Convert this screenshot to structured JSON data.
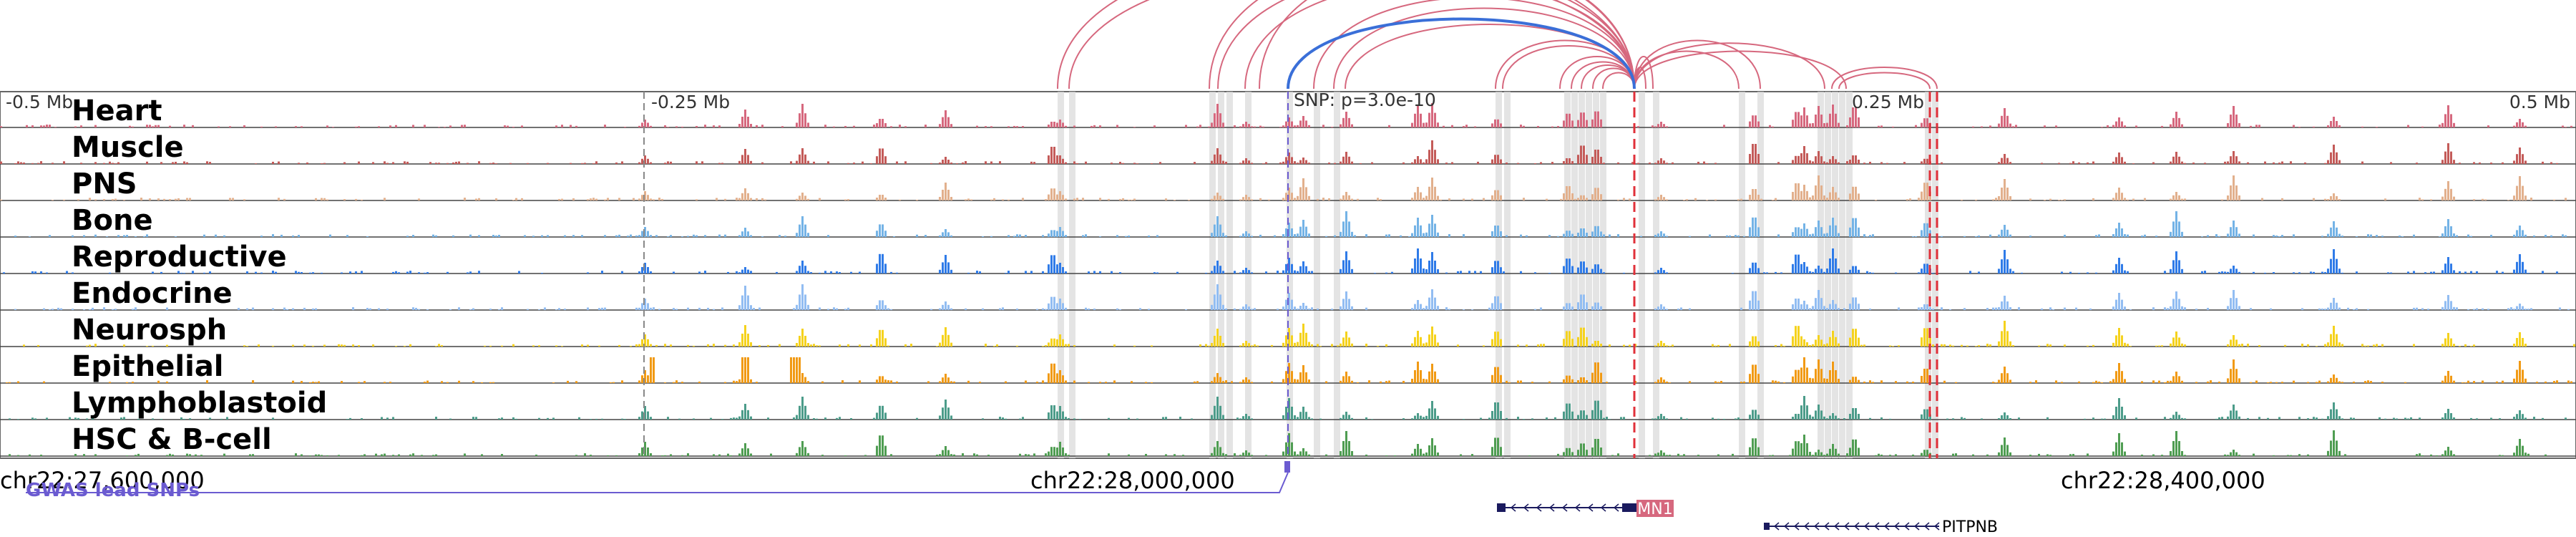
{
  "scale": {
    "left": "-0.5 Mb",
    "left_mid": "-0.25 Mb",
    "snp": "SNP: p=3.0e-10",
    "right_mid": "0.25 Mb",
    "right": "0.5 Mb"
  },
  "tracks": [
    {
      "label": "Heart",
      "color": "#d6687e"
    },
    {
      "label": "Muscle",
      "color": "#c45b59"
    },
    {
      "label": "PNS",
      "color": "#e2b08d"
    },
    {
      "label": "Bone",
      "color": "#74b3e6"
    },
    {
      "label": "Reproductive",
      "color": "#2f7be8"
    },
    {
      "label": "Endocrine",
      "color": "#92bdf2"
    },
    {
      "label": "Neurosph",
      "color": "#f5d21d"
    },
    {
      "label": "Epithelial",
      "color": "#f19a14"
    },
    {
      "label": "Lymphoblastoid",
      "color": "#4c9c8a"
    },
    {
      "label": "HSC & B-cell",
      "color": "#4f9d52"
    }
  ],
  "coordinates": {
    "left": "chr22:27,600,000",
    "middle": "chr22:28,000,000",
    "right": "chr22:28,400,000"
  },
  "gwas_label": "GWAS lead SNPs",
  "genes": {
    "mn1": "MN1",
    "pitpnb": "PITPNB"
  },
  "colors": {
    "arc_red": "#d6687e",
    "arc_blue": "#3a6fd8",
    "gwas": "#6b5bd1",
    "highlight_red": "#e0303a",
    "gene_dark": "#1a1a5e",
    "mn1_box": "#d6687e"
  }
}
